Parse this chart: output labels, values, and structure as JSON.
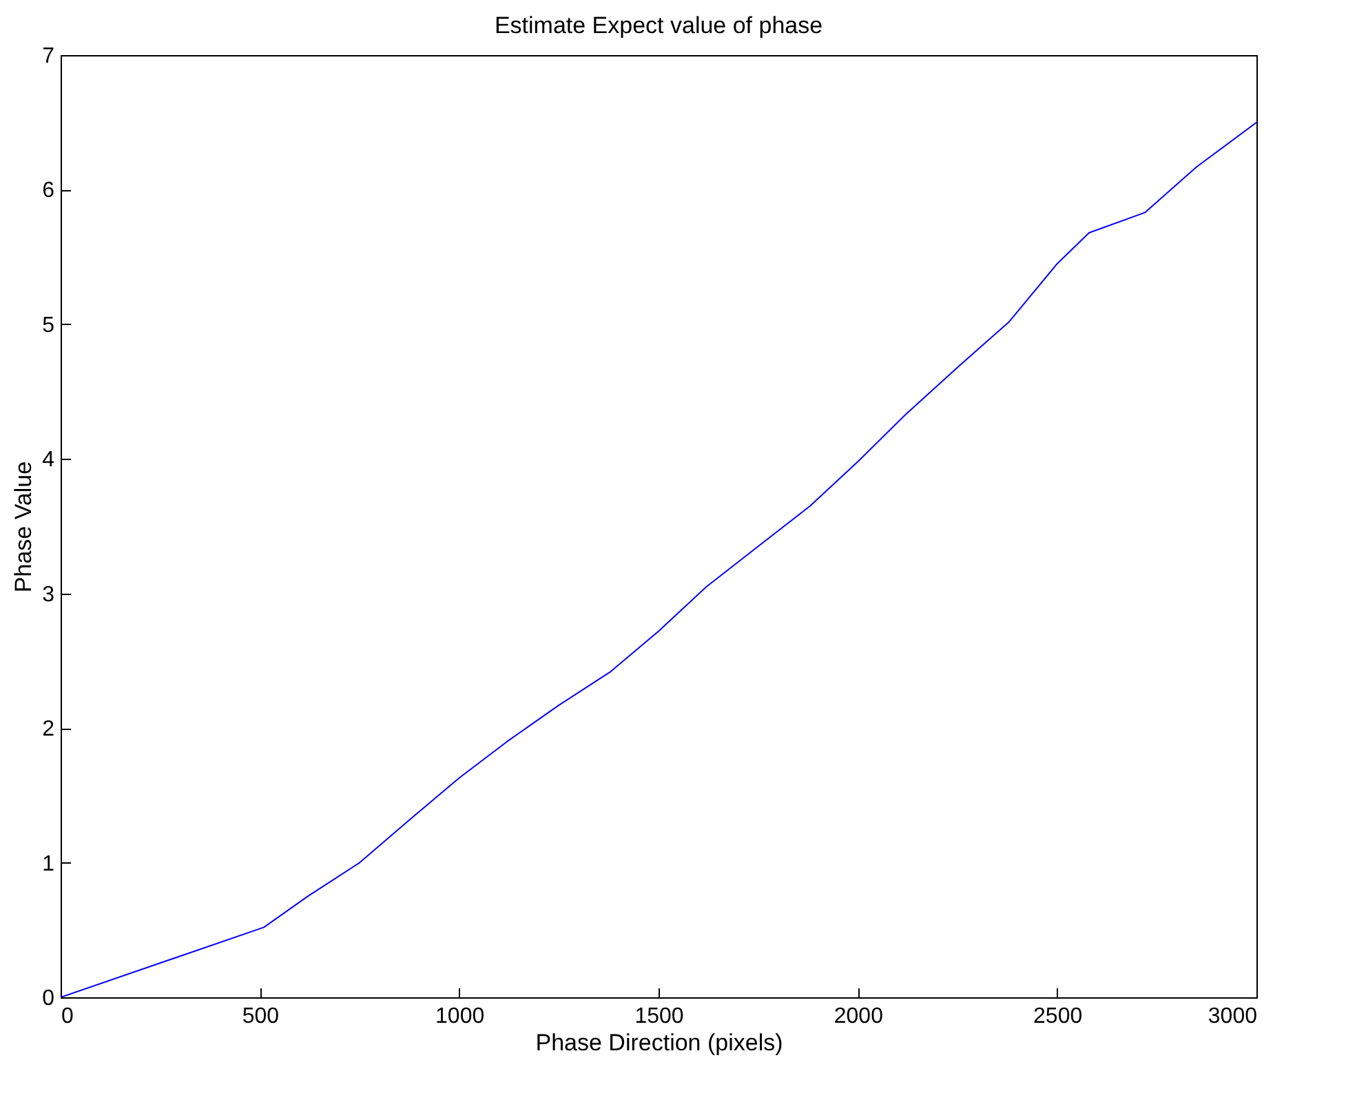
{
  "chart_data": {
    "type": "line",
    "title": "Estimate Expect value of phase",
    "xlabel": "Phase Direction (pixels)",
    "ylabel": "Phase Value",
    "x": [
      0,
      510,
      620,
      750,
      880,
      1000,
      1120,
      1250,
      1380,
      1500,
      1620,
      1750,
      1880,
      2000,
      2120,
      2250,
      2380,
      2500,
      2580,
      2720,
      2850,
      3000
    ],
    "series": [
      {
        "color": "#0000ff",
        "values": [
          0,
          0.52,
          0.75,
          1.0,
          1.33,
          1.63,
          1.9,
          2.17,
          2.42,
          2.72,
          3.05,
          3.35,
          3.65,
          3.98,
          4.33,
          4.68,
          5.02,
          5.45,
          5.68,
          5.83,
          6.17,
          6.5
        ]
      }
    ],
    "xlim": [
      0,
      3000
    ],
    "ylim": [
      0,
      7
    ],
    "xticks": [
      0,
      500,
      1000,
      1500,
      2000,
      2500,
      3000
    ],
    "yticks": [
      0,
      1,
      2,
      3,
      4,
      5,
      6,
      7
    ],
    "grid": false
  }
}
